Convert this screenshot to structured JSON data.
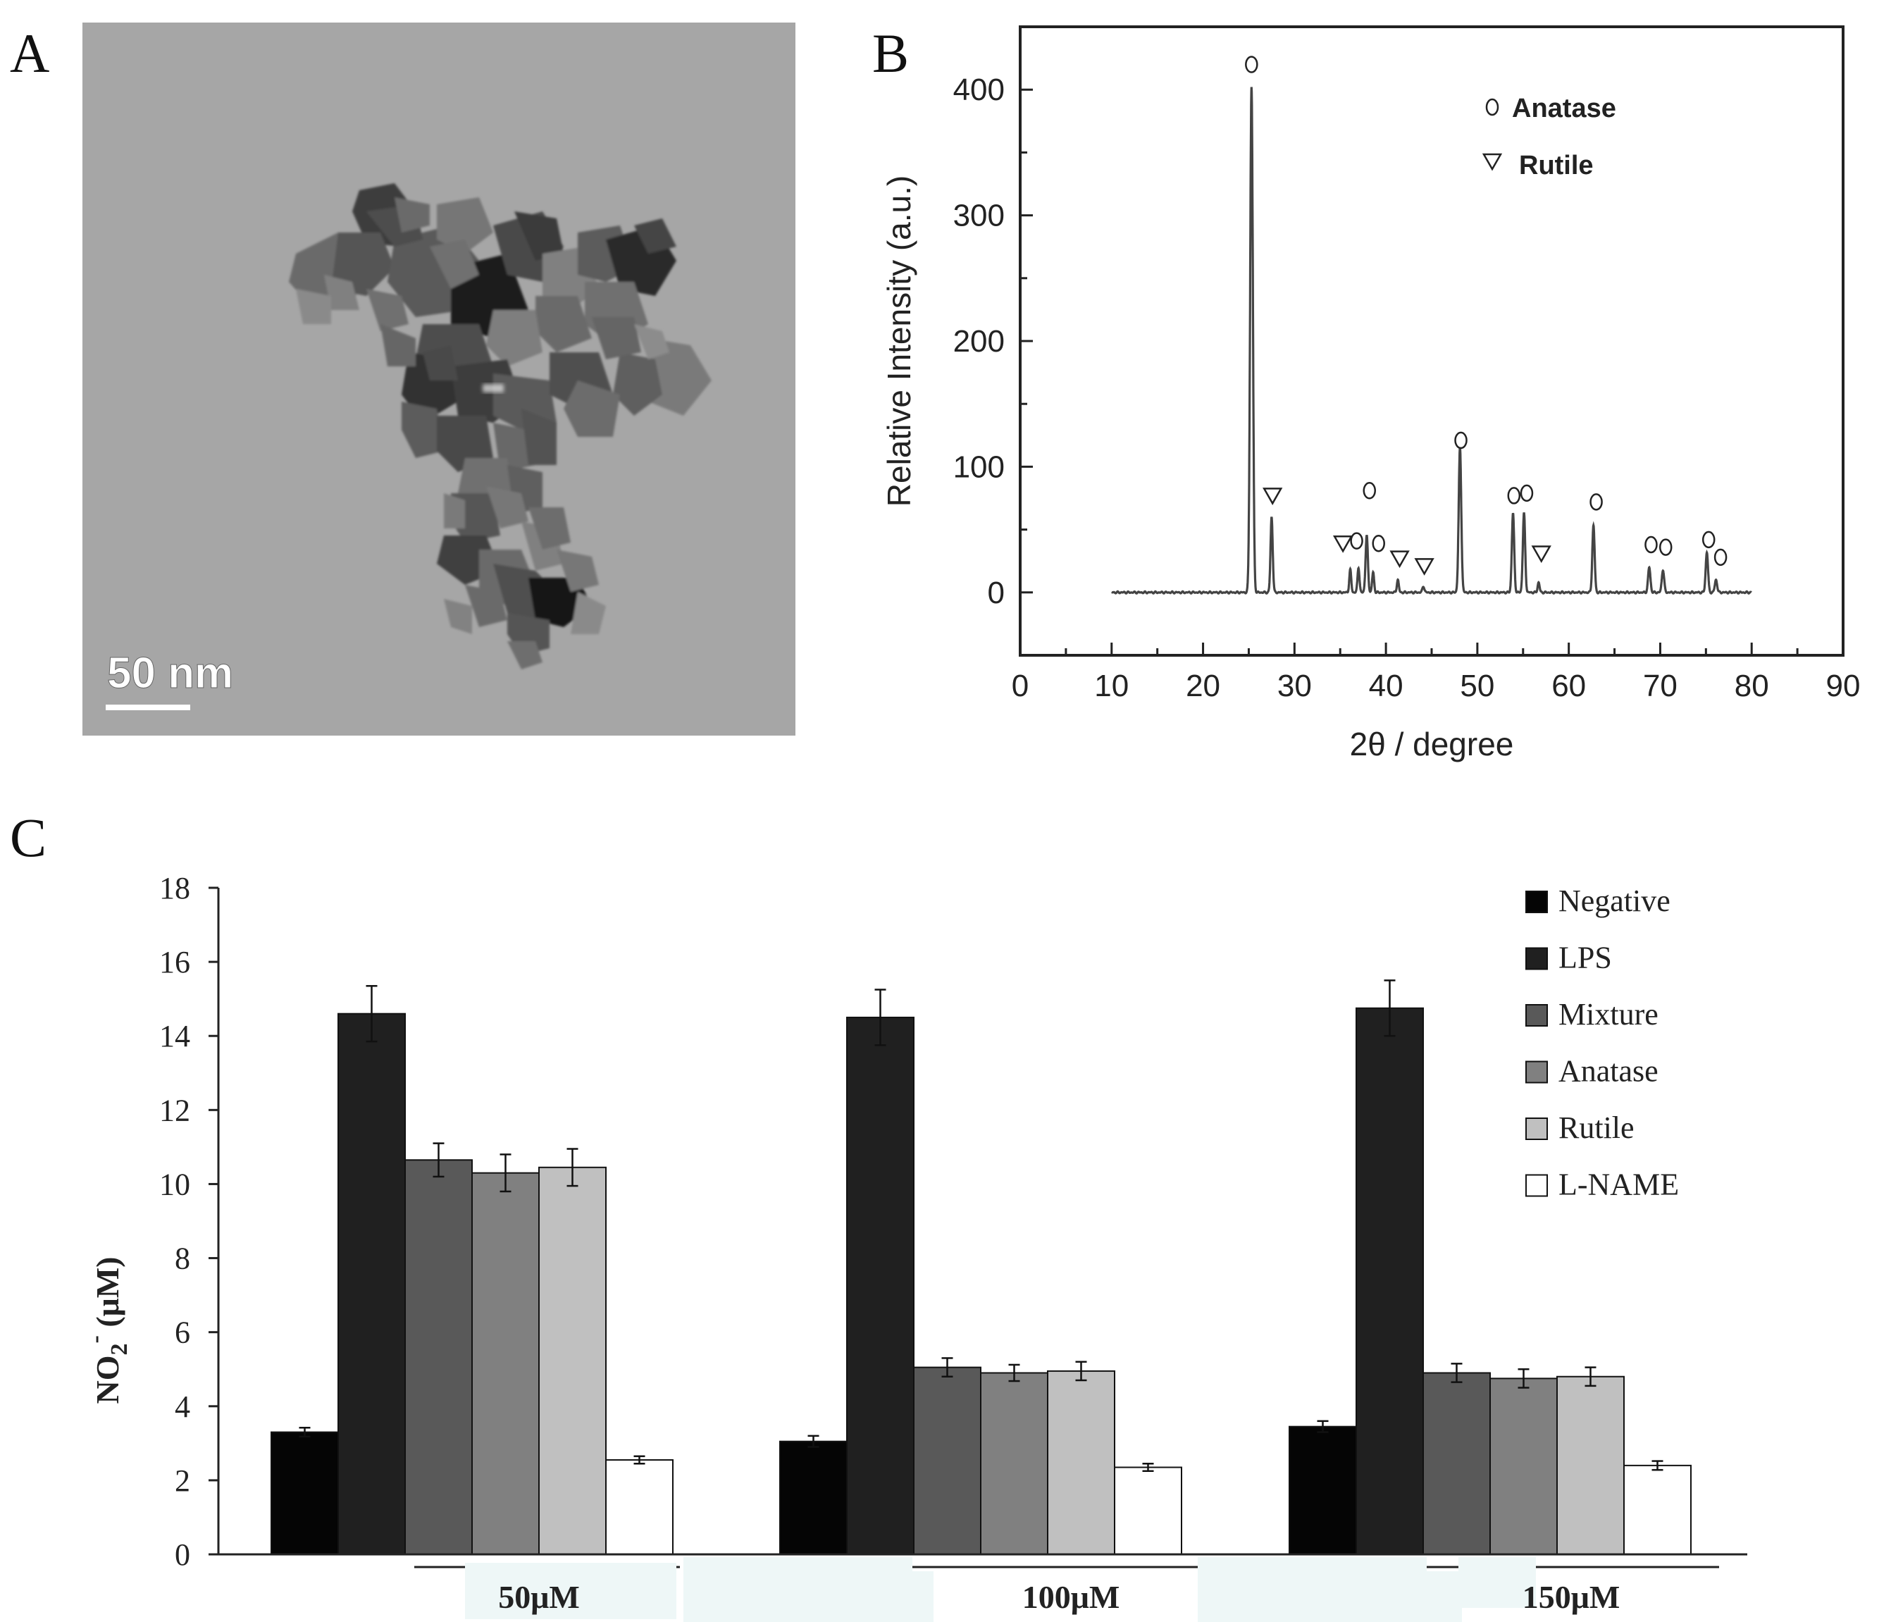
{
  "figure": {
    "panel_labels": [
      "A",
      "B",
      "C"
    ]
  },
  "panel_a": {
    "scale_bar_label": "50 nm"
  },
  "colors": {
    "negative": "#050505",
    "lps": "#202020",
    "mixture": "#595959",
    "anatase": "#808080",
    "rutile": "#c0c0c0",
    "l_name": "#ffffff",
    "xrd_line": "#333333",
    "tem_background": "#a8a8a8"
  },
  "chart_data": [
    {
      "panel": "B",
      "type": "line",
      "xlabel": "2θ / degree",
      "ylabel": "Relative Intensity (a.u.)",
      "xlim": [
        0,
        90
      ],
      "ylim": [
        -50,
        450
      ],
      "xticks": [
        "0",
        "10",
        "20",
        "30",
        "40",
        "50",
        "60",
        "70",
        "80",
        "90"
      ],
      "yticks": [
        "0",
        "100",
        "200",
        "300",
        "400"
      ],
      "legend": [
        {
          "marker": "o",
          "label": "Anatase"
        },
        {
          "marker": "▽",
          "label": "Rutile"
        }
      ],
      "peaks": [
        {
          "x": 25.3,
          "y": 402,
          "width": 0.35,
          "phase": "anatase"
        },
        {
          "x": 27.5,
          "y": 60,
          "width": 0.28,
          "phase": "rutile"
        },
        {
          "x": 36.1,
          "y": 18,
          "width": 0.25,
          "phase": "rutile"
        },
        {
          "x": 37.0,
          "y": 20,
          "width": 0.25,
          "phase": "anatase"
        },
        {
          "x": 37.9,
          "y": 45,
          "width": 0.3,
          "phase": "anatase"
        },
        {
          "x": 38.6,
          "y": 16,
          "width": 0.25,
          "phase": "anatase"
        },
        {
          "x": 41.3,
          "y": 10,
          "width": 0.25,
          "phase": "rutile"
        },
        {
          "x": 44.1,
          "y": 5,
          "width": 0.25,
          "phase": "rutile"
        },
        {
          "x": 48.1,
          "y": 115,
          "width": 0.33,
          "phase": "anatase"
        },
        {
          "x": 53.9,
          "y": 63,
          "width": 0.3,
          "phase": "anatase"
        },
        {
          "x": 55.1,
          "y": 63,
          "width": 0.3,
          "phase": "anatase"
        },
        {
          "x": 56.7,
          "y": 8,
          "width": 0.25,
          "phase": "rutile"
        },
        {
          "x": 62.7,
          "y": 53,
          "width": 0.3,
          "phase": "anatase"
        },
        {
          "x": 68.8,
          "y": 20,
          "width": 0.3,
          "phase": "anatase"
        },
        {
          "x": 70.3,
          "y": 18,
          "width": 0.3,
          "phase": "anatase"
        },
        {
          "x": 75.1,
          "y": 32,
          "width": 0.3,
          "phase": "anatase"
        },
        {
          "x": 76.1,
          "y": 10,
          "width": 0.3,
          "phase": "anatase"
        }
      ],
      "markers": [
        {
          "x": 25.3,
          "y": 420,
          "symbol": "o"
        },
        {
          "x": 27.6,
          "y": 77,
          "symbol": "▽"
        },
        {
          "x": 35.3,
          "y": 39,
          "symbol": "▽"
        },
        {
          "x": 36.8,
          "y": 41,
          "symbol": "o"
        },
        {
          "x": 38.2,
          "y": 81,
          "symbol": "o"
        },
        {
          "x": 39.2,
          "y": 39,
          "symbol": "o"
        },
        {
          "x": 41.5,
          "y": 27,
          "symbol": "▽"
        },
        {
          "x": 44.2,
          "y": 21,
          "symbol": "▽"
        },
        {
          "x": 48.2,
          "y": 121,
          "symbol": "o"
        },
        {
          "x": 54.0,
          "y": 77,
          "symbol": "o"
        },
        {
          "x": 55.4,
          "y": 79,
          "symbol": "o"
        },
        {
          "x": 57.0,
          "y": 31,
          "symbol": "▽"
        },
        {
          "x": 63.0,
          "y": 72,
          "symbol": "o"
        },
        {
          "x": 69.0,
          "y": 38,
          "symbol": "o"
        },
        {
          "x": 70.6,
          "y": 36,
          "symbol": "o"
        },
        {
          "x": 75.3,
          "y": 42,
          "symbol": "o"
        },
        {
          "x": 76.6,
          "y": 28,
          "symbol": "o"
        }
      ]
    },
    {
      "panel": "C",
      "type": "bar",
      "ylabel": "NO₂⁻ (μM)",
      "ylabel_main": "NO",
      "ylabel_sub": "2",
      "ylabel_sup": "-",
      "ylabel_rest": " (μM)",
      "ylim": [
        0,
        18
      ],
      "yticks": [
        "0",
        "2",
        "4",
        "6",
        "8",
        "10",
        "12",
        "14",
        "16",
        "18"
      ],
      "categories": [
        "50μM",
        "100μM",
        "150μM"
      ],
      "series": [
        {
          "name": "Negative",
          "values": [
            3.3,
            3.05,
            3.45
          ],
          "errors": [
            0.12,
            0.15,
            0.15
          ]
        },
        {
          "name": "LPS",
          "values": [
            14.6,
            14.5,
            14.75
          ],
          "errors": [
            0.75,
            0.75,
            0.75
          ]
        },
        {
          "name": "Mixture",
          "values": [
            10.65,
            5.05,
            4.9
          ],
          "errors": [
            0.45,
            0.25,
            0.25
          ]
        },
        {
          "name": "Anatase",
          "values": [
            10.3,
            4.9,
            4.75
          ],
          "errors": [
            0.5,
            0.22,
            0.25
          ]
        },
        {
          "name": "Rutile",
          "values": [
            10.45,
            4.95,
            4.8
          ],
          "errors": [
            0.5,
            0.25,
            0.25
          ]
        },
        {
          "name": "L-NAME",
          "values": [
            2.55,
            2.35,
            2.4
          ],
          "errors": [
            0.1,
            0.1,
            0.12
          ]
        }
      ],
      "legend_labels": [
        "Negative",
        "LPS",
        "Mixture",
        "Anatase",
        "Rutile",
        "L-NAME"
      ]
    }
  ]
}
